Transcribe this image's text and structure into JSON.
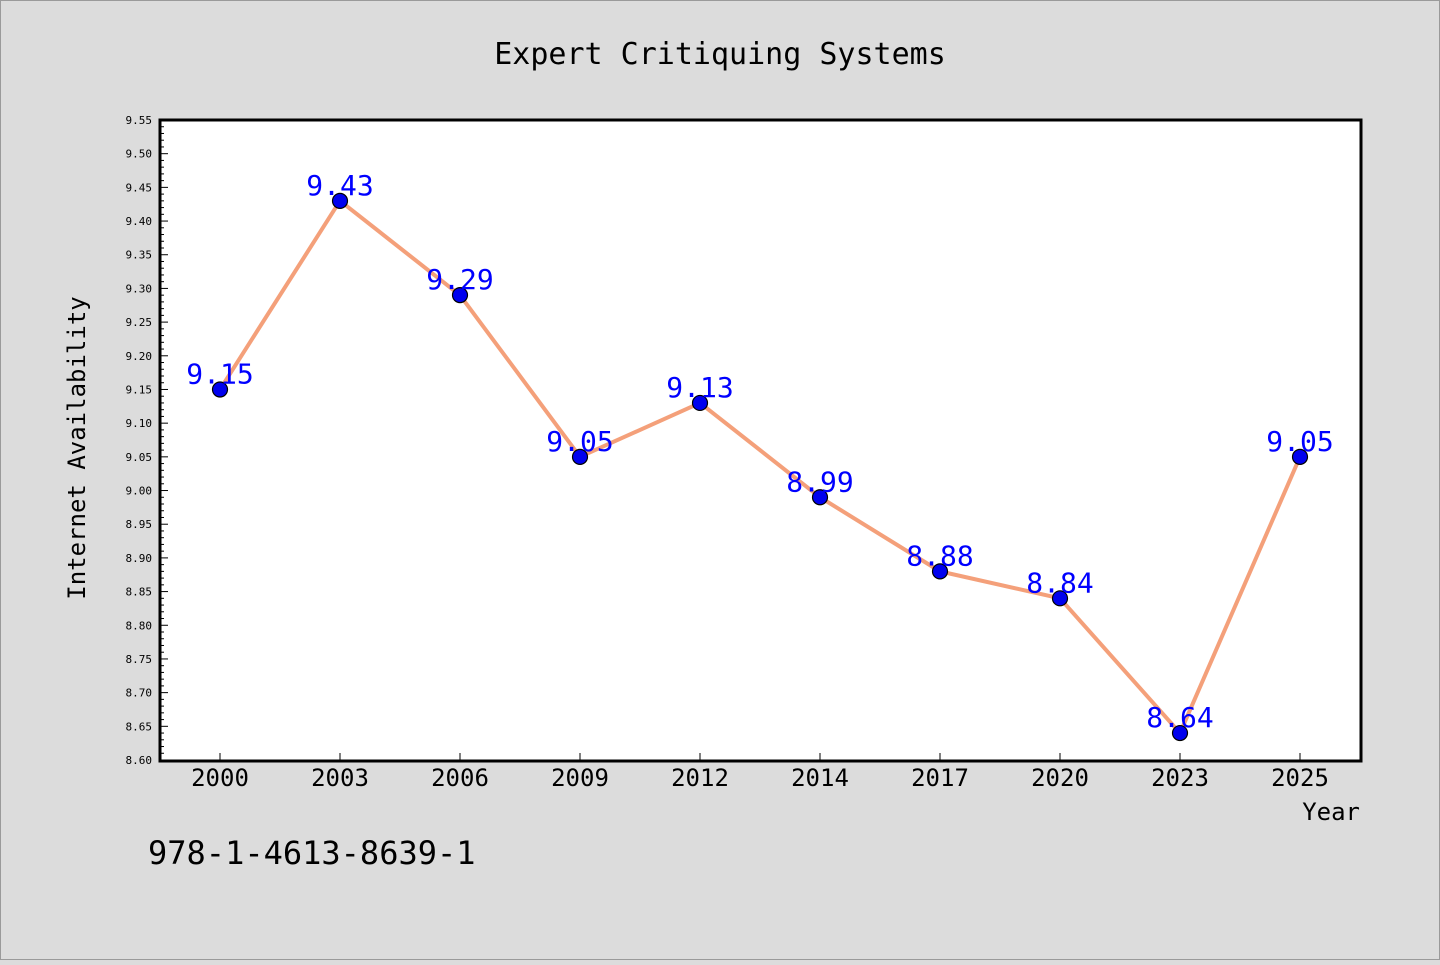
{
  "chart_data": {
    "type": "line",
    "title": "Expert Critiquing Systems",
    "xlabel": "Year",
    "ylabel": "Internet Availability",
    "categories": [
      "2000",
      "2003",
      "2006",
      "2009",
      "2012",
      "2014",
      "2017",
      "2020",
      "2023",
      "2025"
    ],
    "series": [
      {
        "values": [
          9.15,
          9.43,
          9.29,
          9.05,
          9.13,
          8.99,
          8.88,
          8.84,
          8.64,
          9.05
        ],
        "data_labels": [
          "9.15",
          "9.43",
          "9.29",
          "9.05",
          "9.13",
          "8.99",
          "8.88",
          "8.84",
          "8.64",
          "9.05"
        ]
      }
    ],
    "ylim": [
      8.6,
      9.55
    ],
    "yticks": [
      "8.60",
      "8.65",
      "8.70",
      "8.75",
      "8.80",
      "8.85",
      "8.90",
      "8.95",
      "9.00",
      "9.05",
      "9.10",
      "9.15",
      "9.20",
      "9.25",
      "9.30",
      "9.35",
      "9.40",
      "9.45",
      "9.50",
      "9.55"
    ],
    "grid": false,
    "legend": "none",
    "colors": {
      "line": "#f4a07a",
      "marker_fill": "#0000ee",
      "marker_edge": "#000000",
      "data_label": "#0000ff",
      "background": "#dcdcdc",
      "plot_background": "#ffffff"
    }
  },
  "annotation": {
    "isbn": "978-1-4613-8639-1"
  }
}
